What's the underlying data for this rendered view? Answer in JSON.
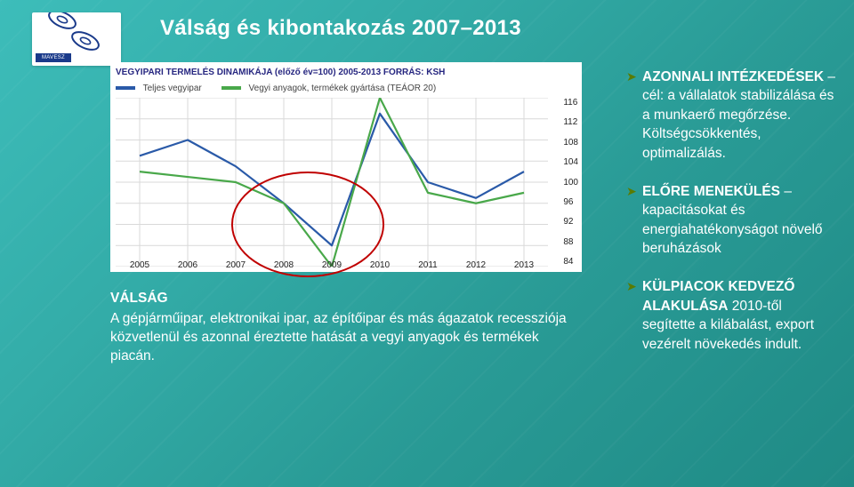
{
  "logo_brand": "MAVESZ",
  "title": "Válság és kibontakozás 2007–2013",
  "chart": {
    "type": "line",
    "title_text": "VEGYIPARI TERMELÉS DINAMIKÁJA (előző év=100) 2005-2013 FORRÁS: KSH",
    "legend": [
      {
        "label": "Teljes vegyipar",
        "color": "#2a5aa8"
      },
      {
        "label": "Vegyi anyagok, termékek gyártása (TEÁOR 20)",
        "color": "#49a84a"
      }
    ],
    "categories": [
      "2005",
      "2006",
      "2007",
      "2008",
      "2009",
      "2010",
      "2011",
      "2012",
      "2013"
    ],
    "series": [
      {
        "name": "Teljes vegyipar",
        "color": "#2a5aa8",
        "values": [
          105,
          108,
          103,
          96,
          88,
          113,
          100,
          97,
          102
        ]
      },
      {
        "name": "Vegyi anyagok, termékek gyártása (TEÁOR 20)",
        "color": "#49a84a",
        "values": [
          102,
          101,
          100,
          96,
          84,
          116,
          98,
          96,
          98
        ]
      }
    ],
    "ylim": [
      84,
      116
    ],
    "ytick_values": [
      116,
      112,
      108,
      104,
      100,
      96,
      92,
      88,
      84
    ],
    "background_color": "#ffffff",
    "line_width": 2.2,
    "font_size_labels": 10,
    "highlight_ellipse": {
      "x_center_index": 3.5,
      "y_center": 92,
      "rx_categories": 1.6,
      "ry_value": 10,
      "stroke": "#c00000"
    }
  },
  "crisis": {
    "header": "VÁLSÁG",
    "text": "A gépjárműipar, elektronikai ipar, az építőipar és más ágazatok recessziója közvetlenül és azonnal éreztette hatását a vegyi anyagok és termékek piacán."
  },
  "bullets": [
    {
      "headline": "AZONNALI INTÉZKEDÉSEK",
      "rest": " – cél: a vállalatok stabilizálása és a munkaerő megőrzése. Költségcsökkentés, optimalizálás."
    },
    {
      "headline": "ELŐRE MENEKÜLÉS",
      "rest": " – kapacitásokat és energiahatékonyságot növelő beruházások"
    },
    {
      "headline": "KÜLPIACOK KEDVEZŐ ALAKULÁSA",
      "rest": " 2010-től segítette a kilábalást, export vezérelt növekedés indult."
    }
  ]
}
